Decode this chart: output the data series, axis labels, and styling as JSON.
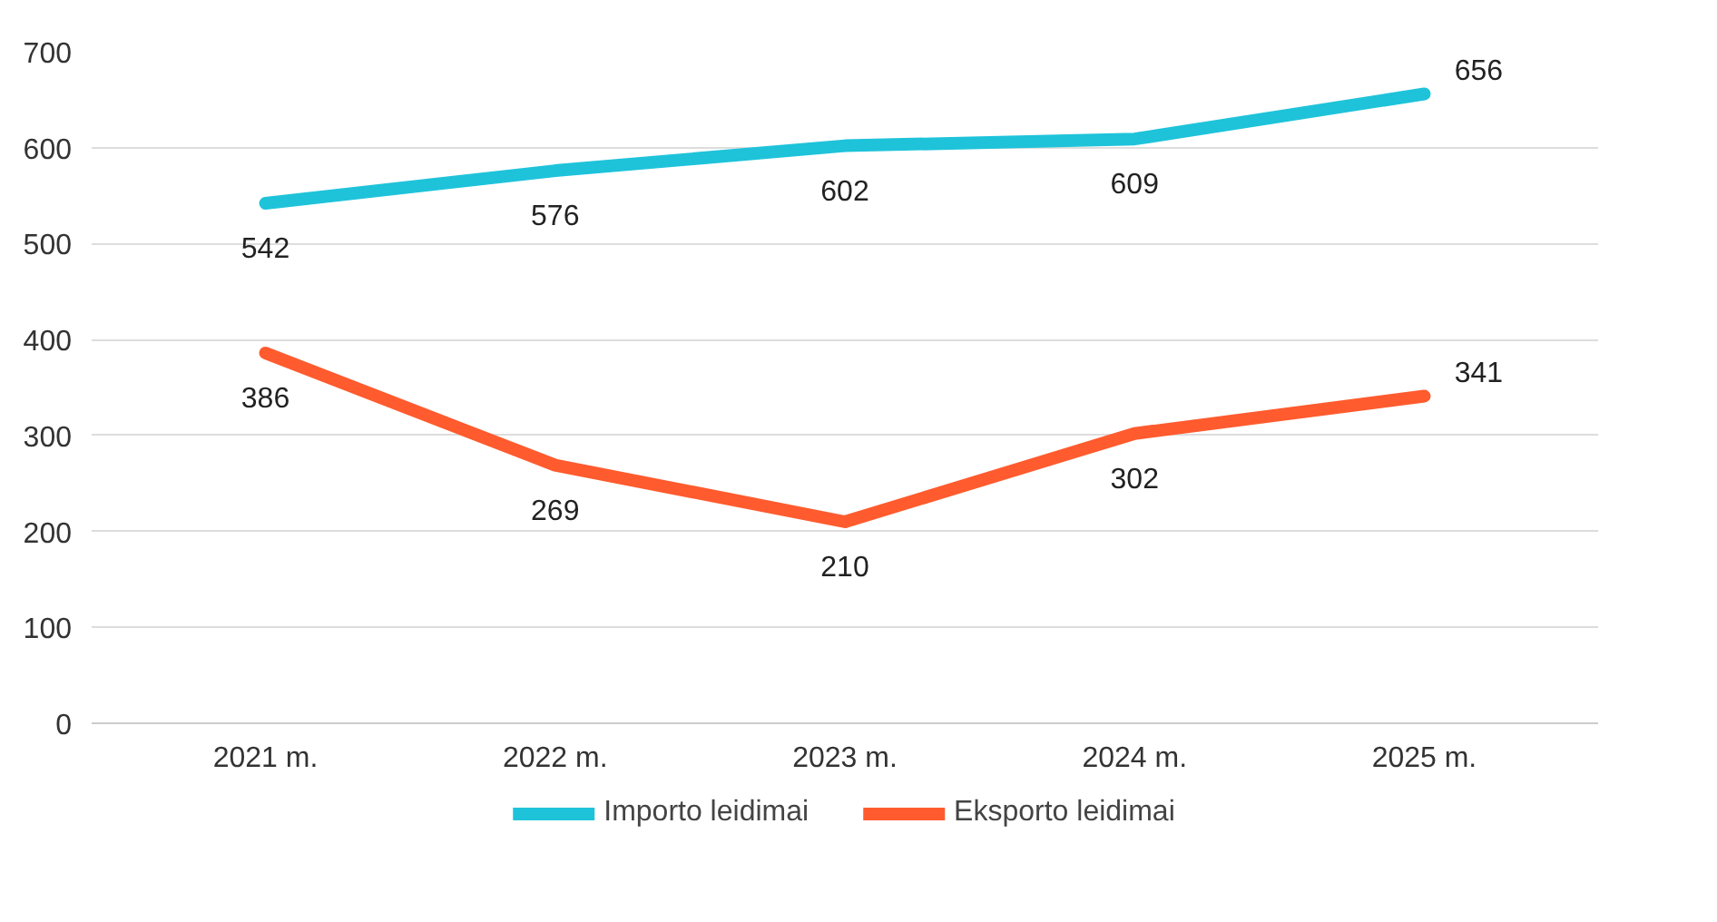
{
  "chart_data": {
    "type": "line",
    "categories": [
      "2021 m.",
      "2022 m.",
      "2023 m.",
      "2024 m.",
      "2025 m."
    ],
    "series": [
      {
        "name": "Importo leidimai",
        "color": "#1ec3da",
        "values": [
          542,
          576,
          602,
          609,
          656
        ]
      },
      {
        "name": "Eksporto leidimai",
        "color": "#ff5b2e",
        "values": [
          386,
          269,
          210,
          302,
          341
        ]
      }
    ],
    "ylim": [
      0,
      700
    ],
    "yticks": [
      0,
      100,
      200,
      300,
      400,
      500,
      600,
      700
    ],
    "grid": "y",
    "legend": "bottom",
    "data_labels": true,
    "marker": "none",
    "line_style": "solid"
  }
}
